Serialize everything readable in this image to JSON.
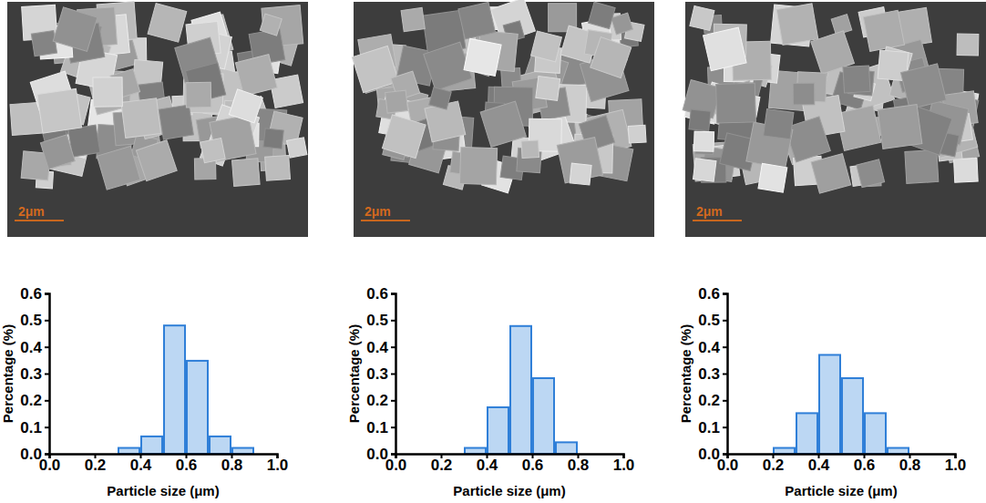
{
  "images": [
    {
      "scale_bar": "2μm"
    },
    {
      "scale_bar": "2μm"
    },
    {
      "scale_bar": "2μm"
    }
  ],
  "chart_data": [
    {
      "type": "histogram",
      "x_label": "Particle size (μm)",
      "y_label": "Percentage (%)",
      "bins": [
        0.3,
        0.4,
        0.5,
        0.6,
        0.7,
        0.8,
        0.9
      ],
      "counts": [
        0.022,
        0.065,
        0.48,
        0.348,
        0.065,
        0.022
      ],
      "color": "#bcd7f3",
      "xlim": [
        0,
        1
      ],
      "xticks": [
        {
          "value": 0,
          "label": "0.0"
        },
        {
          "value": 0.2,
          "label": "0.2"
        },
        {
          "value": 0.4,
          "label": "0.4"
        },
        {
          "value": 0.6,
          "label": "0.6"
        },
        {
          "value": 0.8,
          "label": "0.8"
        },
        {
          "value": 1,
          "label": "1.0"
        }
      ],
      "ylim": [
        0,
        0.6
      ],
      "yticks": [
        {
          "value": 0,
          "label": "0.0"
        },
        0.1,
        0.2,
        0.3,
        0.4,
        0.5,
        0.6
      ]
    },
    {
      "type": "histogram",
      "x_label": "Particle size (μm)",
      "y_label": "Percentage (%)",
      "bins": [
        0.3,
        0.4,
        0.5,
        0.6,
        0.7,
        0.8
      ],
      "counts": [
        0.022,
        0.174,
        0.478,
        0.283,
        0.043
      ],
      "color": "#bcd7f3",
      "xlim": [
        0,
        1
      ],
      "xticks": [
        {
          "value": 0,
          "label": "0.0"
        },
        {
          "value": 0.2,
          "label": "0.2"
        },
        {
          "value": 0.4,
          "label": "0.4"
        },
        {
          "value": 0.6,
          "label": "0.6"
        },
        {
          "value": 0.8,
          "label": "0.8"
        },
        {
          "value": 1,
          "label": "1.0"
        }
      ],
      "ylim": [
        0,
        0.6
      ],
      "yticks": [
        {
          "value": 0,
          "label": "0.0"
        },
        0.1,
        0.2,
        0.3,
        0.4,
        0.5,
        0.6
      ]
    },
    {
      "type": "histogram",
      "x_label": "Particle size (μm)",
      "y_label": "Percentage (%)",
      "bins": [
        0.2,
        0.3,
        0.4,
        0.5,
        0.6,
        0.7,
        0.8
      ],
      "counts": [
        0.022,
        0.152,
        0.37,
        0.283,
        0.152,
        0.022
      ],
      "color": "#bcd7f3",
      "xlim": [
        0,
        1
      ],
      "xticks": [
        {
          "value": 0,
          "label": "0.0"
        },
        {
          "value": 0.2,
          "label": "0.2"
        },
        {
          "value": 0.4,
          "label": "0.4"
        },
        {
          "value": 0.6,
          "label": "0.6"
        },
        {
          "value": 0.8,
          "label": "0.8"
        },
        {
          "value": 1,
          "label": "1.0"
        }
      ],
      "ylim": [
        0,
        0.6
      ],
      "yticks": [
        {
          "value": 0,
          "label": "0.0"
        },
        0.1,
        0.2,
        0.3,
        0.4,
        0.5,
        0.6
      ]
    }
  ]
}
